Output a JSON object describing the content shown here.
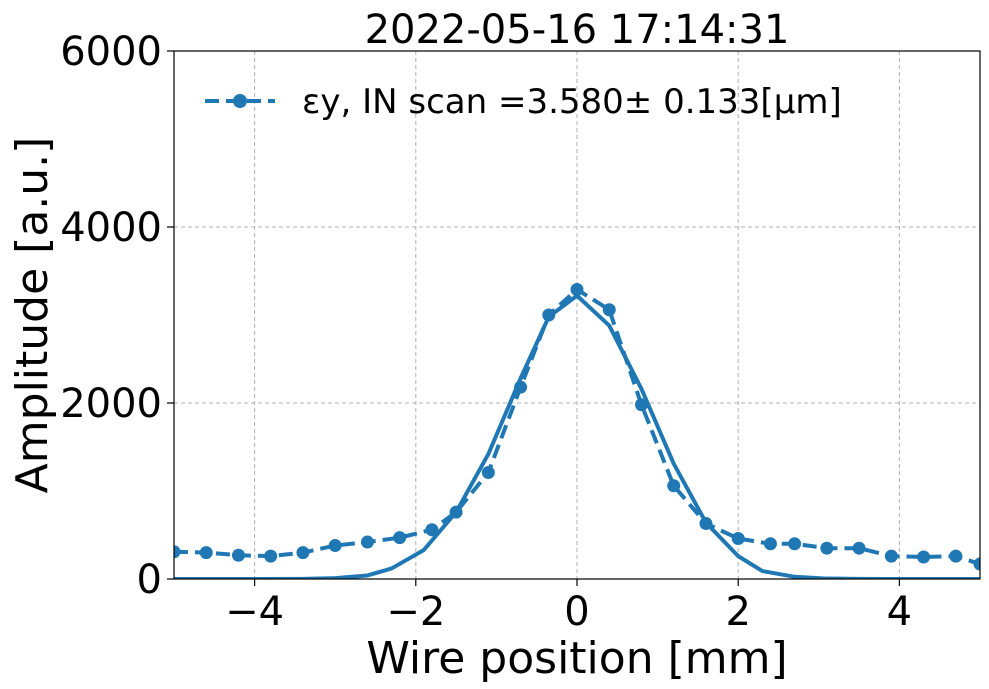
{
  "chart_data": {
    "type": "line",
    "title": "2022-05-16 17:14:31",
    "xlabel": "Wire position [mm]",
    "ylabel": "Amplitude [a.u.]",
    "xlim": [
      -5,
      5
    ],
    "ylim": [
      0,
      6000
    ],
    "xticks": [
      -4,
      -2,
      0,
      2,
      4
    ],
    "xtick_labels": [
      "−4",
      "−2",
      "0",
      "2",
      "4"
    ],
    "yticks": [
      0,
      2000,
      4000,
      6000
    ],
    "ytick_labels": [
      "0",
      "2000",
      "4000",
      "6000"
    ],
    "grid": true,
    "legend_position": "top-left",
    "color": "#1f77b4",
    "series": [
      {
        "name": "εy, IN scan =3.580± 0.133[μm]",
        "style": "dashed-markers",
        "x": [
          -5.0,
          -4.6,
          -4.2,
          -3.8,
          -3.4,
          -3.0,
          -2.6,
          -2.2,
          -1.8,
          -1.5,
          -1.1,
          -0.7,
          -0.35,
          0.0,
          0.4,
          0.8,
          1.2,
          1.6,
          2.0,
          2.4,
          2.7,
          3.1,
          3.5,
          3.9,
          4.3,
          4.7,
          5.0
        ],
        "y": [
          310,
          300,
          270,
          260,
          300,
          380,
          420,
          470,
          560,
          760,
          1210,
          2180,
          3000,
          3290,
          3060,
          1980,
          1060,
          630,
          460,
          400,
          400,
          350,
          350,
          260,
          250,
          260,
          170
        ]
      },
      {
        "style": "solid",
        "x": [
          -5.0,
          -4.0,
          -3.4,
          -3.0,
          -2.6,
          -2.3,
          -1.9,
          -1.5,
          -1.1,
          -0.7,
          -0.35,
          0.0,
          0.4,
          0.8,
          1.2,
          1.6,
          2.0,
          2.3,
          2.7,
          3.1,
          3.5,
          4.0,
          5.0
        ],
        "y": [
          0,
          0,
          2,
          10,
          40,
          120,
          330,
          760,
          1420,
          2280,
          2980,
          3220,
          2880,
          2160,
          1310,
          640,
          260,
          90,
          25,
          5,
          1,
          0,
          0
        ]
      }
    ]
  }
}
